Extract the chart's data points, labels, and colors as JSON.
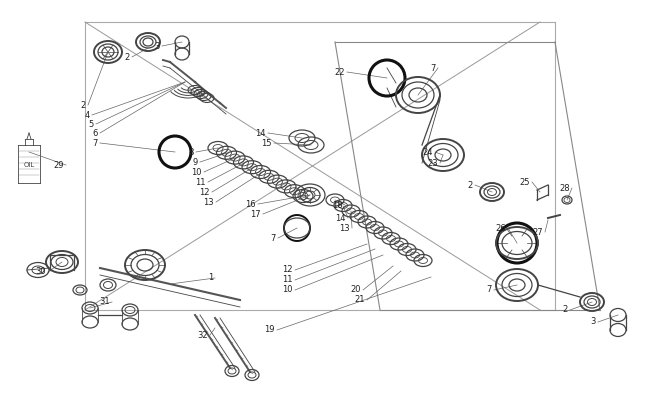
{
  "bg_color": "#ffffff",
  "line_color": "#444444",
  "label_color": "#222222",
  "bold_ring_color": "#111111",
  "figsize": [
    6.5,
    4.17
  ],
  "dpi": 100
}
